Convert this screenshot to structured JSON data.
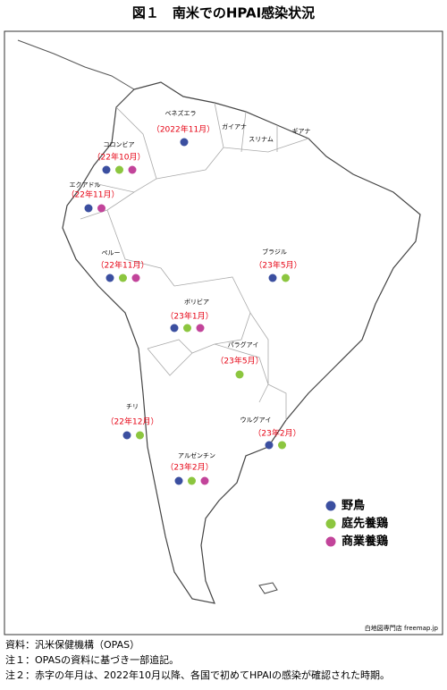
{
  "title": "図１　南米でのHPAI感染状況",
  "legend": [
    {
      "label": "野鳥",
      "color": "#3b4fa0"
    },
    {
      "label": "庭先養鶏",
      "color": "#8cc63f"
    },
    {
      "label": "商業養鶏",
      "color": "#c2449a"
    }
  ],
  "countries": [
    {
      "name": "ベネズエラ",
      "date": "（2022年11月）",
      "dots": [
        0
      ]
    },
    {
      "name": "ガイアナ"
    },
    {
      "name": "スリナム"
    },
    {
      "name": "ギアナ"
    },
    {
      "name": "コロンビア",
      "date": "（22年10月）",
      "dots": [
        0,
        1,
        2
      ]
    },
    {
      "name": "エクアドル",
      "date": "（22年11月）",
      "dots": [
        0,
        2
      ]
    },
    {
      "name": "ペルー",
      "date": "（22年11月）",
      "dots": [
        0,
        1,
        2
      ]
    },
    {
      "name": "ブラジル",
      "date": "（23年5月）",
      "dots": [
        0,
        1
      ]
    },
    {
      "name": "ボリビア",
      "date": "（23年1月）",
      "dots": [
        0,
        1,
        2
      ]
    },
    {
      "name": "パラグアイ",
      "date": "（23年5月）",
      "dots": [
        1
      ]
    },
    {
      "name": "チリ",
      "date": "（22年12月）",
      "dots": [
        0,
        1
      ]
    },
    {
      "name": "ウルグアイ",
      "date": "（23年2月）",
      "dots": [
        0,
        1
      ]
    },
    {
      "name": "アルゼンチン",
      "date": "（23年2月）",
      "dots": [
        0,
        1,
        2
      ]
    }
  ],
  "credit": "白地図専門店 freemap.jp",
  "notes": [
    "資料：汎米保健機構（OPAS）",
    "注１：OPASの資料に基づき一部追記。",
    "注２：赤字の年月は、2022年10月以降、各国で初めてHPAIの感染が確認された時期。"
  ]
}
